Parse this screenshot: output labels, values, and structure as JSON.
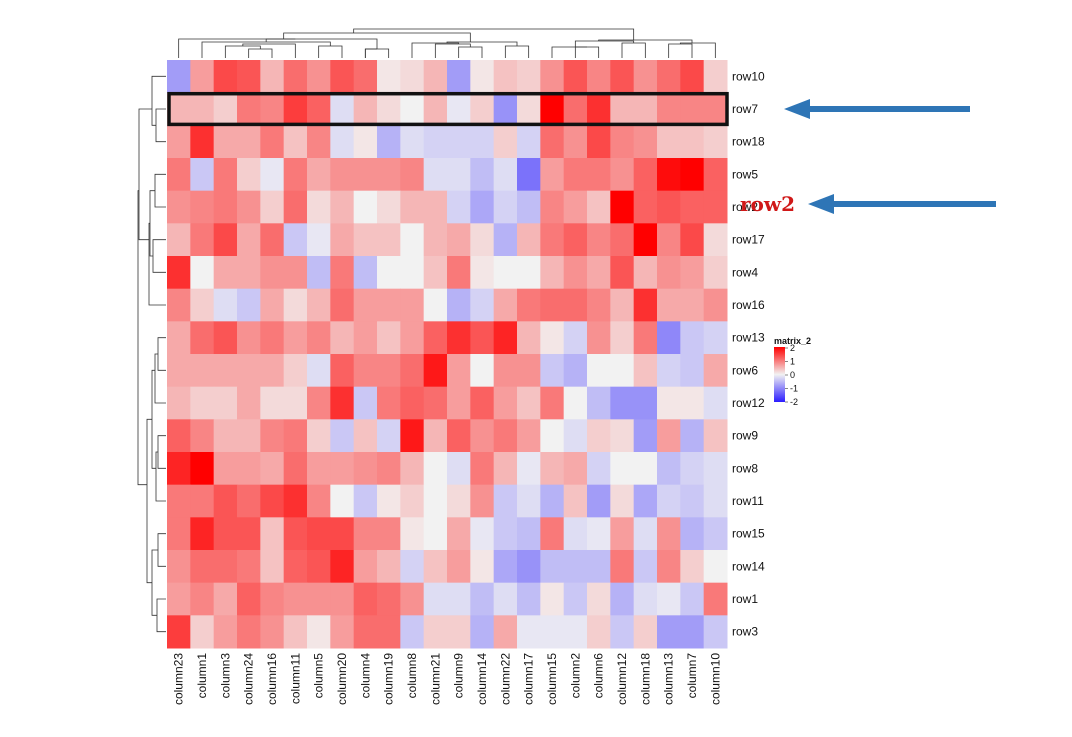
{
  "chart_data": {
    "type": "heatmap",
    "title": "",
    "legend": {
      "title": "matrix_2",
      "ticks": [
        "2",
        "1",
        "0",
        "-1",
        "-2"
      ],
      "range": [
        -2,
        2
      ],
      "colors": {
        "low": "#2b1cff",
        "mid": "#f2f2f2",
        "high": "#ff0000"
      },
      "placement": "right"
    },
    "columns": [
      "column23",
      "column1",
      "column3",
      "column24",
      "column16",
      "column11",
      "column5",
      "column20",
      "column4",
      "column19",
      "column8",
      "column21",
      "column9",
      "column14",
      "column22",
      "column17",
      "column15",
      "column2",
      "column6",
      "column12",
      "column18",
      "column13",
      "column7",
      "column10"
    ],
    "rows": [
      "row10",
      "row7",
      "row18",
      "row5",
      "row2",
      "row17",
      "row4",
      "row16",
      "row13",
      "row6",
      "row12",
      "row9",
      "row8",
      "row11",
      "row15",
      "row14",
      "row1",
      "row3"
    ],
    "values": [
      [
        -0.8,
        0.7,
        1.4,
        1.3,
        0.5,
        1.1,
        0.8,
        1.3,
        1.1,
        0.1,
        0.2,
        0.5,
        -0.8,
        0.1,
        0.4,
        0.3,
        0.8,
        1.3,
        0.9,
        1.3,
        0.8,
        1.1,
        1.4,
        0.3
      ],
      [
        0.5,
        0.5,
        0.3,
        1.0,
        0.9,
        1.5,
        1.2,
        -0.2,
        0.5,
        0.2,
        0.0,
        0.5,
        -0.1,
        0.3,
        -0.9,
        0.2,
        2.0,
        1.1,
        1.6,
        0.5,
        0.5,
        0.9,
        0.9,
        0.9
      ],
      [
        0.7,
        1.6,
        0.6,
        0.6,
        1.0,
        0.4,
        0.9,
        -0.2,
        0.1,
        -0.6,
        -0.2,
        -0.3,
        -0.3,
        -0.3,
        0.3,
        -0.3,
        1.1,
        0.8,
        1.4,
        0.9,
        0.8,
        0.4,
        0.4,
        0.3
      ],
      [
        1.0,
        -0.4,
        1.0,
        0.3,
        -0.1,
        1.0,
        0.6,
        0.8,
        0.8,
        0.8,
        0.9,
        -0.2,
        -0.2,
        -0.5,
        -0.2,
        -1.2,
        0.7,
        1.0,
        1.0,
        0.8,
        1.2,
        1.9,
        2.0,
        1.2
      ],
      [
        0.8,
        0.9,
        1.0,
        0.8,
        0.3,
        1.1,
        0.2,
        0.5,
        0.0,
        0.2,
        0.5,
        0.5,
        -0.3,
        -0.7,
        -0.3,
        -0.5,
        0.9,
        0.7,
        0.4,
        2.0,
        1.2,
        1.3,
        1.2,
        1.2
      ],
      [
        0.5,
        1.0,
        1.4,
        0.6,
        1.1,
        -0.4,
        -0.1,
        0.6,
        0.4,
        0.4,
        0.0,
        0.5,
        0.6,
        0.2,
        -0.6,
        0.5,
        1.0,
        1.2,
        0.9,
        1.1,
        2.0,
        0.9,
        1.4,
        0.2
      ],
      [
        1.6,
        0.0,
        0.6,
        0.6,
        0.8,
        0.8,
        -0.5,
        1.0,
        -0.5,
        0.0,
        0.0,
        0.4,
        1.0,
        0.1,
        0.0,
        0.0,
        0.5,
        0.8,
        0.6,
        1.3,
        0.5,
        0.8,
        0.7,
        0.3
      ],
      [
        0.9,
        0.3,
        -0.2,
        -0.4,
        0.6,
        0.2,
        0.5,
        1.1,
        0.7,
        0.7,
        0.7,
        0.0,
        -0.6,
        -0.3,
        0.6,
        1.0,
        1.1,
        1.1,
        0.9,
        0.5,
        1.6,
        0.6,
        0.6,
        0.8
      ],
      [
        0.6,
        1.1,
        1.3,
        0.8,
        1.0,
        0.7,
        0.9,
        0.5,
        0.7,
        0.4,
        0.7,
        1.2,
        1.6,
        1.3,
        1.7,
        0.5,
        0.1,
        -0.3,
        0.8,
        0.3,
        1.0,
        -1.0,
        -0.4,
        -0.3
      ],
      [
        0.6,
        0.6,
        0.6,
        0.6,
        0.6,
        0.3,
        -0.2,
        1.2,
        0.9,
        0.9,
        1.1,
        1.8,
        0.7,
        0.0,
        0.8,
        0.8,
        -0.4,
        -0.6,
        0.0,
        0.0,
        0.4,
        -0.3,
        -0.4,
        0.6
      ],
      [
        0.5,
        0.3,
        0.3,
        0.6,
        0.2,
        0.2,
        0.9,
        1.6,
        -0.4,
        1.0,
        1.2,
        1.1,
        0.7,
        1.2,
        0.7,
        0.4,
        1.0,
        0.0,
        -0.5,
        -0.9,
        -0.9,
        0.1,
        0.1,
        -0.2
      ],
      [
        1.2,
        0.9,
        0.5,
        0.5,
        0.9,
        1.0,
        0.3,
        -0.4,
        0.4,
        -0.3,
        1.8,
        0.5,
        1.2,
        0.8,
        1.0,
        0.7,
        0.0,
        -0.2,
        0.3,
        0.2,
        -0.8,
        0.7,
        -0.6,
        0.4
      ],
      [
        1.7,
        2.0,
        0.7,
        0.7,
        0.6,
        1.1,
        0.7,
        0.7,
        0.8,
        0.9,
        0.5,
        0.0,
        -0.2,
        1.0,
        0.5,
        -0.1,
        0.5,
        0.6,
        -0.3,
        0.0,
        0.0,
        -0.5,
        -0.3,
        -0.2
      ],
      [
        1.0,
        1.0,
        1.3,
        1.1,
        1.4,
        1.6,
        0.9,
        0.0,
        -0.4,
        0.1,
        0.3,
        0.0,
        0.2,
        0.8,
        -0.4,
        -0.2,
        -0.6,
        0.4,
        -0.8,
        0.2,
        -0.7,
        -0.3,
        -0.4,
        -0.2
      ],
      [
        1.0,
        1.7,
        1.3,
        1.3,
        0.4,
        1.3,
        1.4,
        1.4,
        0.9,
        0.9,
        0.1,
        0.0,
        0.6,
        -0.1,
        -0.4,
        -0.5,
        1.0,
        -0.2,
        -0.1,
        0.7,
        -0.2,
        0.8,
        -0.6,
        -0.4
      ],
      [
        0.8,
        1.1,
        1.1,
        1.0,
        0.4,
        1.2,
        1.3,
        1.7,
        0.7,
        0.5,
        -0.3,
        0.4,
        0.7,
        0.1,
        -0.7,
        -0.9,
        -0.5,
        -0.5,
        -0.5,
        1.0,
        -0.4,
        0.9,
        0.3,
        0.0
      ],
      [
        0.7,
        0.9,
        0.6,
        1.2,
        0.9,
        0.8,
        0.8,
        0.8,
        1.2,
        1.1,
        0.8,
        -0.2,
        -0.2,
        -0.5,
        -0.2,
        -0.5,
        0.1,
        -0.4,
        0.2,
        -0.6,
        -0.2,
        -0.1,
        -0.4,
        1.0
      ],
      [
        1.5,
        0.3,
        0.7,
        1.0,
        0.8,
        0.4,
        0.1,
        0.7,
        1.1,
        1.1,
        -0.4,
        0.3,
        0.3,
        -0.6,
        0.6,
        -0.1,
        -0.1,
        -0.1,
        0.3,
        -0.4,
        0.3,
        -0.8,
        -0.8,
        -0.4
      ]
    ],
    "dendrograms": {
      "rows": true,
      "columns": true
    },
    "highlight": {
      "row": "row7",
      "outline_color": "#111111"
    },
    "annotations": [
      {
        "type": "arrow",
        "points_to": "row7",
        "color": "#2e75b6"
      },
      {
        "type": "label",
        "text": "row2",
        "color": "#d01818"
      },
      {
        "type": "arrow",
        "points_to": "row2-label",
        "color": "#2e75b6"
      }
    ]
  }
}
